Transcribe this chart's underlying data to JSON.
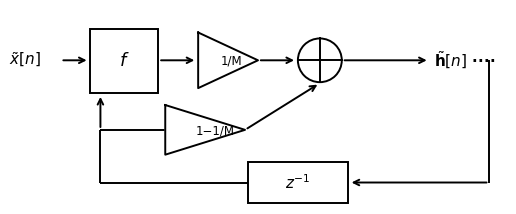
{
  "fig_width": 5.16,
  "fig_height": 2.14,
  "dpi": 100,
  "bg_color": "#ffffff",
  "input_label": "$\\tilde{x}[n]$",
  "output_label": "$\\tilde{\\mathbf{h}}[n]$",
  "output_dots": " ····",
  "lw": 1.4
}
